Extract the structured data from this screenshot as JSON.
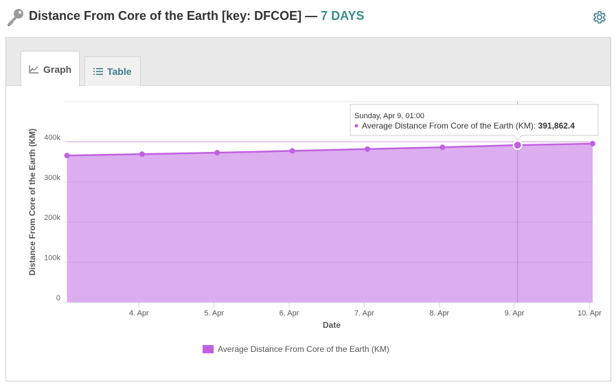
{
  "header": {
    "title": "Distance From Core of the Earth [key: DFCOE] —",
    "period": "7 DAYS"
  },
  "tabs": [
    {
      "label": "Graph",
      "active": true
    },
    {
      "label": "Table",
      "active": false
    }
  ],
  "icons": {
    "key": "key-icon",
    "settings": "gear-icon",
    "graph_tab": "area-chart-icon",
    "table_tab": "list-icon"
  },
  "colors": {
    "series_line": "#c061e0",
    "series_fill": "#dcaef0",
    "accent": "#3d8c8c"
  },
  "tooltip": {
    "date": "Sunday, Apr 9, 01:00",
    "series": "Average Distance From Core of the Earth (KM):",
    "value": "391,862.4"
  },
  "chart_data": {
    "type": "area",
    "title": "",
    "xlabel": "Date",
    "ylabel": "Distance From Core of the Earth (KM)",
    "ylim": [
      0,
      500000
    ],
    "yticks": [
      0,
      100000,
      200000,
      300000,
      400000
    ],
    "ytick_labels": [
      "0",
      "100k",
      "200k",
      "300k",
      "400k"
    ],
    "xlim": [
      "2017-04-03T00:00",
      "2017-04-10T01:00"
    ],
    "xticks": [
      "2017-04-04",
      "2017-04-05",
      "2017-04-06",
      "2017-04-07",
      "2017-04-08",
      "2017-04-09",
      "2017-04-10"
    ],
    "xtick_labels": [
      "4. Apr",
      "5. Apr",
      "6. Apr",
      "7. Apr",
      "8. Apr",
      "9. Apr",
      "10. Apr"
    ],
    "grid": true,
    "legend": "bottom-center",
    "series": [
      {
        "name": "Average Distance From Core of the Earth (KM)",
        "x": [
          "2017-04-03T01:00",
          "2017-04-04T01:00",
          "2017-04-05T01:00",
          "2017-04-06T01:00",
          "2017-04-07T01:00",
          "2017-04-08T01:00",
          "2017-04-09T01:00",
          "2017-04-10T01:00"
        ],
        "values": [
          366000,
          369500,
          373000,
          377500,
          382000,
          386500,
          391862.4,
          395500
        ]
      }
    ],
    "highlighted_point": "2017-04-09T01:00"
  }
}
